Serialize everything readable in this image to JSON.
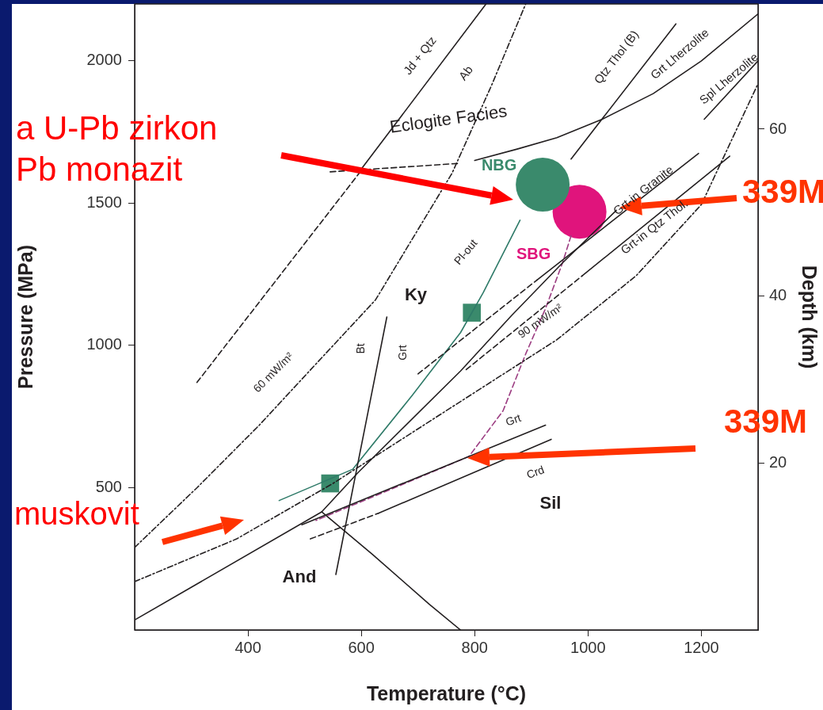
{
  "chart_data": {
    "type": "line",
    "xlabel": "Temperature (°C)",
    "ylabel": "Pressure (MPa)",
    "y2label": "Depth (km)",
    "xlim": [
      200,
      1300
    ],
    "ylim": [
      0,
      2200
    ],
    "xticks": [
      400,
      600,
      800,
      1000,
      1200
    ],
    "yticks": [
      500,
      1000,
      1500,
      2000
    ],
    "y2lim": [
      0,
      75
    ],
    "y2ticks": [
      20,
      40,
      60
    ],
    "legend": false,
    "grid": false,
    "series": [
      {
        "color": "#231f20",
        "line_style": "solid",
        "marker": "none",
        "x": [
          600,
          820
        ],
        "values": [
          1620,
          2200
        ]
      },
      {
        "color": "#231f20",
        "line_style": "dashed",
        "marker": "none",
        "x": [
          310,
          600
        ],
        "values": [
          870,
          1615
        ]
      },
      {
        "color": "#231f20",
        "line_style": "dotted",
        "marker": "none",
        "x": [
          200,
          310,
          420,
          520,
          625,
          760,
          830,
          890
        ],
        "values": [
          290,
          500,
          720,
          935,
          1160,
          1605,
          1915,
          2200
        ]
      },
      {
        "color": "#231f20",
        "line_style": "dotted",
        "marker": "none",
        "x": [
          200,
          380,
          550,
          765,
          945,
          1085,
          1200,
          1300
        ],
        "values": [
          170,
          320,
          515,
          790,
          1020,
          1245,
          1495,
          1920
        ]
      },
      {
        "color": "#231f20",
        "line_style": "solid",
        "marker": "none",
        "x": [
          970,
          1155
        ],
        "values": [
          1655,
          2130
        ]
      },
      {
        "color": "#231f20",
        "line_style": "solid",
        "marker": "none",
        "x": [
          800,
          875,
          945,
          1025,
          1115,
          1200,
          1300
        ],
        "values": [
          1650,
          1690,
          1730,
          1795,
          1885,
          2000,
          2165
        ]
      },
      {
        "color": "#231f20",
        "line_style": "dashed",
        "marker": "none",
        "x": [
          545,
          775
        ],
        "values": [
          1610,
          1640
        ]
      },
      {
        "color": "#231f20",
        "line_style": "solid",
        "marker": "none",
        "x": [
          1205,
          1300
        ],
        "values": [
          1795,
          2000
        ]
      },
      {
        "color": "#231f20",
        "line_style": "solid",
        "marker": "none",
        "x": [
          910,
          1195
        ],
        "values": [
          1230,
          1675
        ]
      },
      {
        "color": "#231f20",
        "line_style": "solid",
        "marker": "none",
        "x": [
          990,
          1250
        ],
        "values": [
          1245,
          1665
        ]
      },
      {
        "color": "#231f20",
        "line_style": "dashed",
        "marker": "none",
        "x": [
          700,
          910
        ],
        "values": [
          900,
          1230
        ]
      },
      {
        "color": "#231f20",
        "line_style": "dashed",
        "marker": "none",
        "x": [
          785,
          990
        ],
        "values": [
          915,
          1245
        ]
      },
      {
        "color": "#231f20",
        "line_style": "solid",
        "marker": "none",
        "x": [
          200,
          530,
          595,
          775,
          865,
          955,
          1050
        ],
        "values": [
          35,
          415,
          555,
          910,
          1105,
          1290,
          1475
        ]
      },
      {
        "color": "#231f20",
        "line_style": "solid",
        "marker": "none",
        "x": [
          530,
          620,
          720,
          775
        ],
        "values": [
          415,
          265,
          90,
          0
        ]
      },
      {
        "color": "#231f20",
        "line_style": "solid",
        "marker": "none",
        "x": [
          645,
          555
        ],
        "values": [
          1100,
          195
        ]
      },
      {
        "color": "#231f20",
        "line_style": "solid",
        "marker": "none",
        "x": [
          495,
          925
        ],
        "values": [
          370,
          720
        ]
      },
      {
        "color": "#231f20",
        "line_style": "solid",
        "marker": "none",
        "x": [
          630,
          935
        ],
        "values": [
          410,
          670
        ]
      },
      {
        "color": "#231f20",
        "line_style": "dashed",
        "marker": "none",
        "x": [
          510,
          630
        ],
        "values": [
          320,
          410
        ]
      },
      {
        "color": "#2e7a68",
        "line_style": "solid",
        "marker": "none",
        "x": [
          880,
          815,
          775,
          690,
          585,
          455
        ],
        "values": [
          1440,
          1185,
          1045,
          825,
          565,
          455
        ]
      },
      {
        "color": "#9c3d82",
        "line_style": "dashed",
        "marker": "none",
        "x": [
          970,
          955,
          925,
          890,
          850,
          790,
          665,
          520
        ],
        "values": [
          1385,
          1290,
          1130,
          970,
          770,
          610,
          505,
          385
        ]
      },
      {
        "type": "scatter",
        "color": "#3a8a6c",
        "marker": "square",
        "x": [
          795,
          545
        ],
        "values": [
          1115,
          515
        ]
      },
      {
        "type": "scatter",
        "name": "NBG",
        "color": "#3a8a6c",
        "marker": "circle",
        "x": [
          920
        ],
        "values": [
          1565
        ]
      },
      {
        "type": "scatter",
        "name": "SBG",
        "color": "#e0147c",
        "marker": "circle",
        "x": [
          985
        ],
        "values": [
          1470
        ]
      }
    ],
    "annotations": [
      "Eclogite Facies",
      "Jd + Qtz",
      "Ab",
      "Qtz Thol (B)",
      "Grt Lherzolite",
      "Spl Lherzolite",
      "Grt-in Granite",
      "Grt-in Qtz Thol.",
      "Pl-out",
      "Ky",
      "Bt",
      "Grt",
      "60 mW/m²",
      "90 mW/m²",
      "Grt",
      "Crd",
      "Sil",
      "And",
      "a U-Pb zirkon",
      "Pb monazit",
      "muskovit",
      "339M",
      "339M"
    ]
  }
}
